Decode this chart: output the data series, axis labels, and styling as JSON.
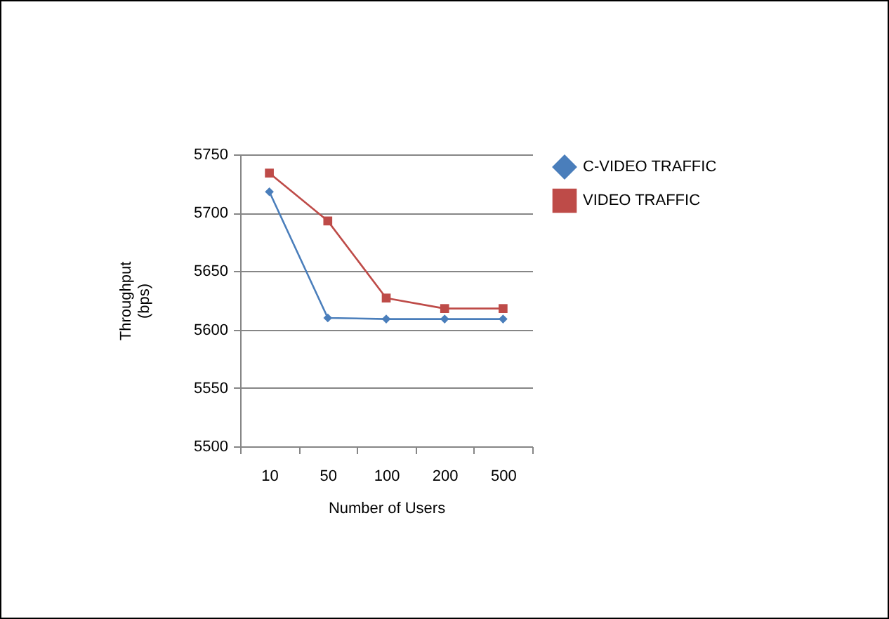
{
  "chart_data": {
    "type": "line",
    "xlabel": "Number of Users",
    "ylabel": "Throughput\n(bps)",
    "categories": [
      "10",
      "50",
      "100",
      "200",
      "500"
    ],
    "series": [
      {
        "name": "C-VIDEO TRAFFIC",
        "color": "#4a7ebb",
        "marker": "diamond",
        "values": [
          5718,
          5610,
          5609,
          5609,
          5609
        ]
      },
      {
        "name": "VIDEO TRAFFIC",
        "color": "#be4b48",
        "marker": "square",
        "values": [
          5734,
          5693,
          5627,
          5618,
          5618
        ]
      }
    ],
    "ylim": [
      5500,
      5750
    ],
    "yticks": [
      5500,
      5550,
      5600,
      5650,
      5700,
      5750
    ],
    "grid": "y",
    "legend": "right"
  }
}
